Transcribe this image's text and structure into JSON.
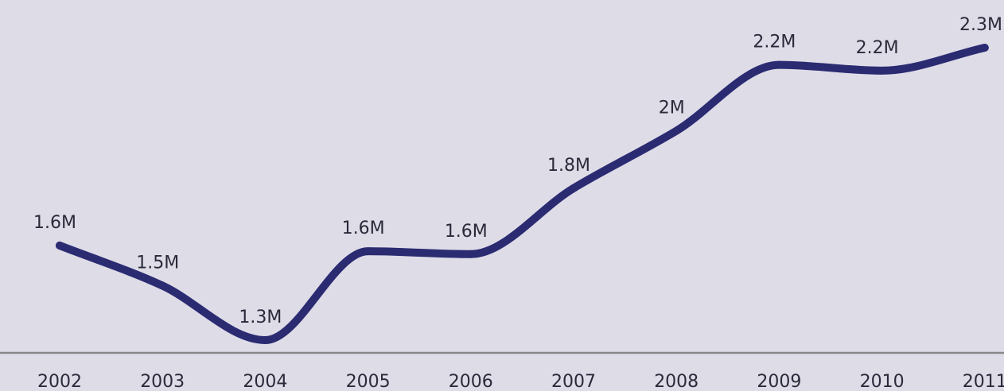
{
  "chart_data": {
    "type": "line",
    "title": "",
    "xlabel": "",
    "ylabel": "",
    "categories": [
      "2002",
      "2003",
      "2004",
      "2005",
      "2006",
      "2007",
      "2008",
      "2009",
      "2010",
      "2011"
    ],
    "series": [
      {
        "values": [
          1.59,
          1.45,
          1.26,
          1.57,
          1.56,
          1.79,
          1.99,
          2.22,
          2.2,
          2.28
        ],
        "labels": [
          "1.6M",
          "1.5M",
          "1.3M",
          "1.6M",
          "1.6M",
          "1.8M",
          "2M",
          "2.2M",
          "2.2M",
          "2.3M"
        ],
        "color": "#2b2b72"
      }
    ],
    "grid": false,
    "legend": "none",
    "axis_color": "#888888",
    "background": "#dedce7"
  }
}
